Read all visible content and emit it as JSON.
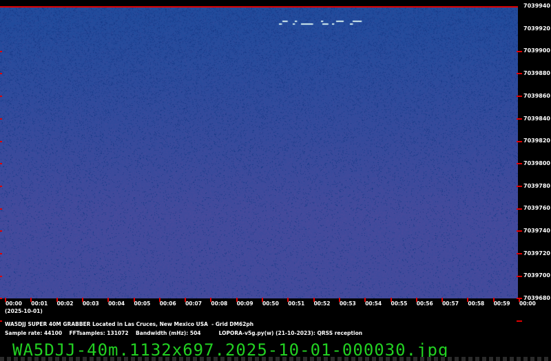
{
  "spectrogram": {
    "colors": {
      "noise_top": "#1e4b9c",
      "noise_bottom": "#4a4a9c",
      "speckle": "#183a8a",
      "signal": "#d8f0f0",
      "tick": "#e00000",
      "filename": "#22d022"
    },
    "freq_labels": [
      "7039940",
      "7039920",
      "7039900",
      "7039880",
      "7039860",
      "7039840",
      "7039820",
      "7039800",
      "7039780",
      "7039760",
      "7039740",
      "7039720",
      "7039700",
      "7039680"
    ],
    "time_labels": [
      "00:00",
      "00:01",
      "00:02",
      "00:03",
      "00:04",
      "00:05",
      "00:06",
      "00:07",
      "00:08",
      "00:09",
      "00:50",
      "00:51",
      "00:52",
      "00:53",
      "00:54",
      "00:55",
      "00:56",
      "00:57",
      "00:58",
      "00:59",
      "00:00"
    ],
    "date": "(2025-10-01)"
  },
  "info": {
    "line1": "WA5DJJ SUPER 40M GRABBER Located in Las Cruces, New Mexico USA  - Grid DM62ph",
    "line2": "Sample rate: 44100    FFTsamples: 131072    Bandwidth (mHz): 504          LOPORA-v5g.py(w) (21-10-2023): QRSS reception"
  },
  "filename": "WA5DJJ-40m.1132x697.2025-10-01-000030.jpg"
}
